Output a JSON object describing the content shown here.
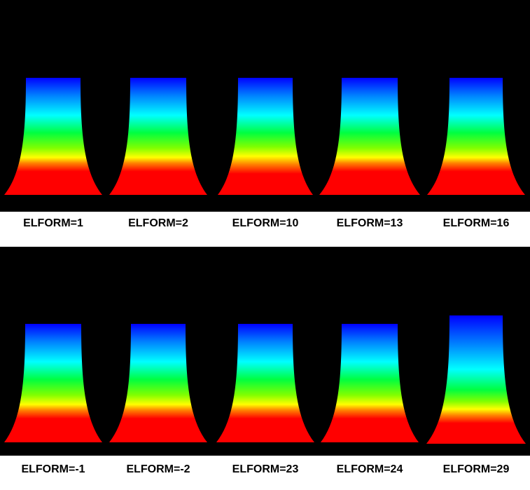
{
  "colors": {
    "background": "#000000",
    "label_background": "#ffffff",
    "label_text": "#000000",
    "contour_scale": [
      "#0000ff",
      "#0080ff",
      "#00ffff",
      "#00ff40",
      "#80ff00",
      "#ffff00",
      "#ff8000",
      "#ff0000"
    ]
  },
  "rows": [
    {
      "elements": [
        {
          "label": "ELFORM=1"
        },
        {
          "label": "ELFORM=2"
        },
        {
          "label": "ELFORM=10"
        },
        {
          "label": "ELFORM=13"
        },
        {
          "label": "ELFORM=16"
        }
      ]
    },
    {
      "elements": [
        {
          "label": "ELFORM=-1"
        },
        {
          "label": "ELFORM=-2"
        },
        {
          "label": "ELFORM=23"
        },
        {
          "label": "ELFORM=24"
        },
        {
          "label": "ELFORM=29"
        }
      ]
    }
  ]
}
